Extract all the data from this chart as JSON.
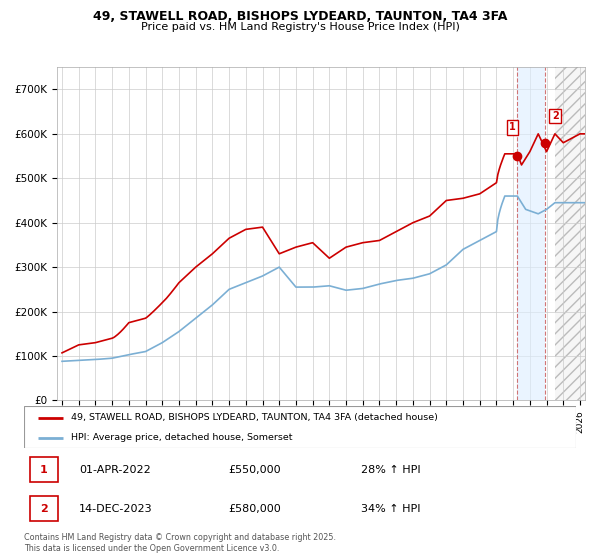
{
  "title_line1": "49, STAWELL ROAD, BISHOPS LYDEARD, TAUNTON, TA4 3FA",
  "title_line2": "Price paid vs. HM Land Registry's House Price Index (HPI)",
  "ylim": [
    0,
    750000
  ],
  "yticks": [
    0,
    100000,
    200000,
    300000,
    400000,
    500000,
    600000,
    700000
  ],
  "ytick_labels": [
    "£0",
    "£100K",
    "£200K",
    "£300K",
    "£400K",
    "£500K",
    "£600K",
    "£700K"
  ],
  "house_color": "#cc0000",
  "hpi_color": "#7bafd4",
  "marker1_t": 2022.25,
  "marker1_price": 550000,
  "marker1_label": "01-APR-2022",
  "marker1_amount": "£550,000",
  "marker1_pct": "28% ↑ HPI",
  "marker2_t": 2023.917,
  "marker2_price": 580000,
  "marker2_label": "14-DEC-2023",
  "marker2_amount": "£580,000",
  "marker2_pct": "34% ↑ HPI",
  "legend_house": "49, STAWELL ROAD, BISHOPS LYDEARD, TAUNTON, TA4 3FA (detached house)",
  "legend_hpi": "HPI: Average price, detached house, Somerset",
  "footer": "Contains HM Land Registry data © Crown copyright and database right 2025.\nThis data is licensed under the Open Government Licence v3.0.",
  "background_color": "#ffffff",
  "grid_color": "#cccccc",
  "future_start": 2024.5,
  "xlim_left": 1994.7,
  "xlim_right": 2026.3
}
